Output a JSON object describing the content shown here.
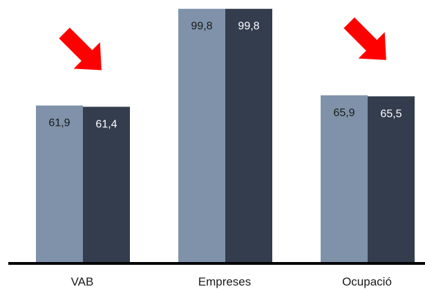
{
  "chart_data": {
    "type": "bar",
    "categories": [
      "VAB",
      "Empreses",
      "Ocupació"
    ],
    "series": [
      {
        "values": [
          61.9,
          99.8,
          65.9
        ]
      },
      {
        "values": [
          61.4,
          99.8,
          65.5
        ]
      }
    ],
    "value_labels": [
      [
        "61,9",
        "99,8",
        "65,9"
      ],
      [
        "61,4",
        "99,8",
        "65,5"
      ]
    ],
    "ylim": [
      0,
      100
    ],
    "grid": false,
    "legend": "none",
    "decreasing_arrows": [
      true,
      false,
      true
    ],
    "colors": {
      "series_1": "#7f92aa",
      "series_2": "#343d4e",
      "arrow": "#ff0000",
      "axis": "#000000",
      "label_on_light": "#1a1a1a",
      "label_on_dark": "#ffffff"
    }
  }
}
